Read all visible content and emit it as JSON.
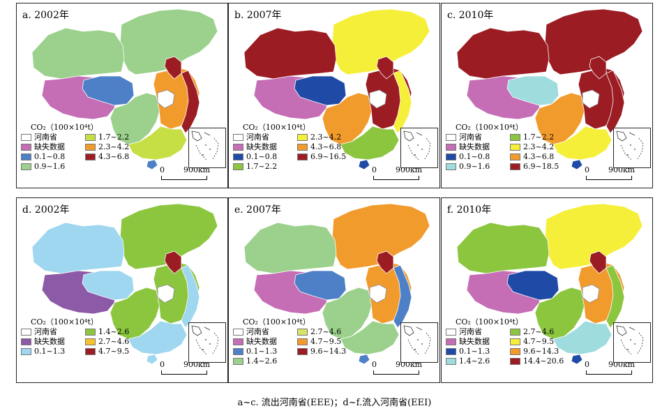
{
  "colors": {
    "white": "#ffffff",
    "missing": "#c56db5",
    "missing_d": "#8c5aa6",
    "blue": "#4e80c8",
    "darkblue": "#1f4aa6",
    "lightblue": "#9fdcde",
    "skyblue": "#9ed7ef",
    "mint": "#9bd18c",
    "green": "#8cc63f",
    "yellowgreen": "#c6df45",
    "yellow": "#f6ef3a",
    "orange": "#f29b2d",
    "darkred": "#9b1c22",
    "paleyellow": "#d9e26a"
  },
  "panels": [
    {
      "title": "a. 2002年",
      "legend_title": "CO₂（100×10⁴t）",
      "legend": [
        {
          "label": "河南省",
          "color": "#ffffff"
        },
        {
          "label": "1.7~2.2",
          "color": "#c6df45"
        },
        {
          "label": "缺失数据",
          "color": "#c56db5"
        },
        {
          "label": "2.3~4.2",
          "color": "#f29b2d"
        },
        {
          "label": "0.1~0.8",
          "color": "#4e80c8"
        },
        {
          "label": "4.3~6.8",
          "color": "#9b1c22"
        },
        {
          "label": "0.9~1.6",
          "color": "#9bd18c"
        }
      ],
      "scale_zero": "0",
      "scale_km": "900km",
      "regions": {
        "north": "#9bd18c",
        "west": "#9bd18c",
        "tibet": "#c56db5",
        "qinghai": "#4e80c8",
        "center": "#9bd18c",
        "east": "#f29b2d",
        "south": "#c6df45",
        "coast": "#9b1c22",
        "taiwan": "#c56db5",
        "hainan": "#4e80c8",
        "beijing": "#9b1c22"
      }
    },
    {
      "title": "b. 2007年",
      "legend_title": "CO₂（100×10⁴t）",
      "legend": [
        {
          "label": "河南省",
          "color": "#ffffff"
        },
        {
          "label": "2.3~4.2",
          "color": "#f6ef3a"
        },
        {
          "label": "缺失数据",
          "color": "#c56db5"
        },
        {
          "label": "4.3~6.8",
          "color": "#f29b2d"
        },
        {
          "label": "0.1~0.8",
          "color": "#1f4aa6"
        },
        {
          "label": "6.9~16.5",
          "color": "#9b1c22"
        },
        {
          "label": "1.7~2.2",
          "color": "#8cc63f"
        }
      ],
      "scale_zero": "0",
      "scale_km": "900km",
      "regions": {
        "north": "#f6ef3a",
        "west": "#9b1c22",
        "tibet": "#c56db5",
        "qinghai": "#1f4aa6",
        "center": "#f29b2d",
        "east": "#9b1c22",
        "south": "#8cc63f",
        "coast": "#f6ef3a",
        "taiwan": "#c56db5",
        "hainan": "#1f4aa6",
        "beijing": "#9b1c22"
      }
    },
    {
      "title": "c. 2010年",
      "legend_title": "CO₂（100×10⁴t）",
      "legend": [
        {
          "label": "河南省",
          "color": "#ffffff"
        },
        {
          "label": "1.7~2.2",
          "color": "#8cc63f"
        },
        {
          "label": "缺失数据",
          "color": "#c56db5"
        },
        {
          "label": "2.3~4.2",
          "color": "#f6ef3a"
        },
        {
          "label": "0.1~0.8",
          "color": "#1f4aa6"
        },
        {
          "label": "4.3~6.8",
          "color": "#f29b2d"
        },
        {
          "label": "0.9~1.6",
          "color": "#9fdcde"
        },
        {
          "label": "6.9~18.5",
          "color": "#9b1c22"
        }
      ],
      "scale_zero": "0",
      "scale_km": "900km",
      "regions": {
        "north": "#9b1c22",
        "west": "#9b1c22",
        "tibet": "#c56db5",
        "qinghai": "#9fdcde",
        "center": "#f29b2d",
        "east": "#9b1c22",
        "south": "#f6ef3a",
        "coast": "#9b1c22",
        "taiwan": "#c56db5",
        "hainan": "#1f4aa6",
        "beijing": "#9b1c22"
      }
    },
    {
      "title": "d. 2002年",
      "legend_title": "CO₂（100×10⁴t）",
      "legend": [
        {
          "label": "河南省",
          "color": "#ffffff"
        },
        {
          "label": "1.4~2.6",
          "color": "#8cc63f"
        },
        {
          "label": "缺失数据",
          "color": "#8c5aa6"
        },
        {
          "label": "2.7~4.6",
          "color": "#f6c12e"
        },
        {
          "label": "0.1~1.3",
          "color": "#9ed7ef"
        },
        {
          "label": "4.7~9.5",
          "color": "#9b1c22"
        }
      ],
      "scale_zero": "0",
      "scale_km": "900km",
      "regions": {
        "north": "#8cc63f",
        "west": "#9ed7ef",
        "tibet": "#8c5aa6",
        "qinghai": "#9ed7ef",
        "center": "#8cc63f",
        "east": "#8cc63f",
        "south": "#9ed7ef",
        "coast": "#9ed7ef",
        "taiwan": "#8c5aa6",
        "hainan": "#9ed7ef",
        "beijing": "#9b1c22"
      }
    },
    {
      "title": "e. 2007年",
      "legend_title": "CO₂（100×10⁴t）",
      "legend": [
        {
          "label": "河南省",
          "color": "#ffffff"
        },
        {
          "label": "2.7~4.6",
          "color": "#d9e26a"
        },
        {
          "label": "缺失数据",
          "color": "#c56db5"
        },
        {
          "label": "4.7~9.5",
          "color": "#f29b2d"
        },
        {
          "label": "0.1~1.3",
          "color": "#4e80c8"
        },
        {
          "label": "9.6~14.3",
          "color": "#9b1c22"
        },
        {
          "label": "1.4~2.6",
          "color": "#9bd18c"
        }
      ],
      "scale_zero": "0",
      "scale_km": "900km",
      "regions": {
        "north": "#f29b2d",
        "west": "#9bd18c",
        "tibet": "#c56db5",
        "qinghai": "#4e80c8",
        "center": "#9bd18c",
        "east": "#f29b2d",
        "south": "#9bd18c",
        "coast": "#4e80c8",
        "taiwan": "#c56db5",
        "hainan": "#4e80c8",
        "beijing": "#9b1c22"
      }
    },
    {
      "title": "f. 2010年",
      "legend_title": "CO₂（100×10⁴t）",
      "legend": [
        {
          "label": "河南省",
          "color": "#ffffff"
        },
        {
          "label": "2.7~4.6",
          "color": "#8cc63f"
        },
        {
          "label": "缺失数据",
          "color": "#c56db5"
        },
        {
          "label": "4.7~9.5",
          "color": "#f6ef3a"
        },
        {
          "label": "0.1~1.3",
          "color": "#1f4aa6"
        },
        {
          "label": "9.6~14.3",
          "color": "#f29b2d"
        },
        {
          "label": "1.4~2.6",
          "color": "#9fdcde"
        },
        {
          "label": "14.4~20.6",
          "color": "#9b1c22"
        }
      ],
      "scale_zero": "0",
      "scale_km": "900km",
      "regions": {
        "north": "#f6ef3a",
        "west": "#8cc63f",
        "tibet": "#c56db5",
        "qinghai": "#1f4aa6",
        "center": "#8cc63f",
        "east": "#f29b2d",
        "south": "#9fdcde",
        "coast": "#8cc63f",
        "taiwan": "#c56db5",
        "hainan": "#1f4aa6",
        "beijing": "#9b1c22"
      }
    }
  ],
  "caption": "a~c. 流出河南省(EEE)；d~f.流入河南省(EEI)"
}
